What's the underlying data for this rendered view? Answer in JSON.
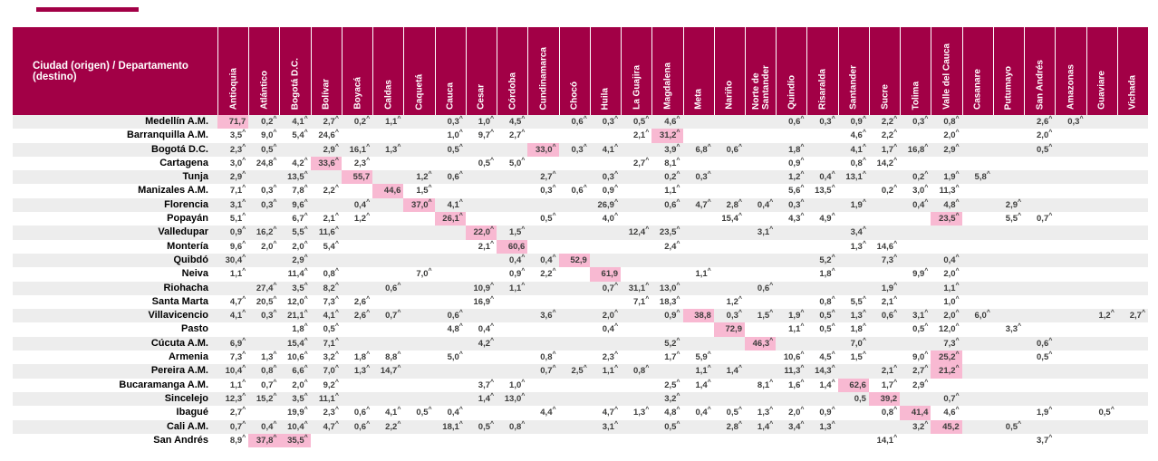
{
  "colors": {
    "header_bg": "#a20046",
    "highlight": "#f8b9d2",
    "row_alt": "#ededed",
    "text": "#3c3c3b"
  },
  "chart_data": {
    "type": "table",
    "corner_label": "Ciudad (origen) / Departamento (destino)",
    "value_note_symbol": "^",
    "columns": [
      "Antioquia",
      "Atlántico",
      "Bogotá D.C.",
      "Bolívar",
      "Boyacá",
      "Caldas",
      "Caquetá",
      "Cauca",
      "Cesar",
      "Córdoba",
      "Cundinamarca",
      "Chocó",
      "Huila",
      "La Guajira",
      "Magdalena",
      "Meta",
      "Nariño",
      "Norte de Santander",
      "Quindío",
      "Risaralda",
      "Santander",
      "Sucre",
      "Tolima",
      "Valle del Cauca",
      "Casanare",
      "Putumayo",
      "San Andrés",
      "Amazonas",
      "Guaviare",
      "Vichada"
    ],
    "rows": [
      {
        "label": "Medellín A.M.",
        "hl": [
          0
        ],
        "cells": [
          "71,7",
          "0,2^",
          "4,1^",
          "2,7^",
          "0,2^",
          "1,1^",
          "",
          "0,3^",
          "1,0^",
          "4,5^",
          "",
          "0,6^",
          "0,3^",
          "0,5^",
          "4,6^",
          "",
          "",
          "",
          "0,6^",
          "0,3^",
          "0,9^",
          "2,2^",
          "0,3^",
          "0,8^",
          "",
          "",
          "2,6^",
          "0,3^",
          "",
          ""
        ]
      },
      {
        "label": "Barranquilla A.M.",
        "hl": [
          14
        ],
        "cells": [
          "3,5^",
          "9,0^",
          "5,4^",
          "24,6^",
          "",
          "",
          "",
          "1,0^",
          "9,7^",
          "2,7^",
          "",
          "",
          "",
          "2,1^",
          "31,2^",
          "",
          "",
          "",
          "",
          "",
          "4,6^",
          "2,2^",
          "",
          "2,0^",
          "",
          "",
          "2,0^",
          "",
          "",
          ""
        ]
      },
      {
        "label": "Bogotá D.C.",
        "hl": [
          10
        ],
        "cells": [
          "2,3^",
          "0,5^",
          "",
          "2,9^",
          "16,1^",
          "1,3^",
          "",
          "0,5^",
          "",
          "",
          "33,0^",
          "0,3^",
          "4,1^",
          "",
          "3,9^",
          "6,8^",
          "0,6^",
          "",
          "1,8^",
          "",
          "4,1^",
          "1,7^",
          "16,8^",
          "2,9^",
          "",
          "",
          "0,5^",
          "",
          "",
          ""
        ]
      },
      {
        "label": "Cartagena",
        "hl": [
          3
        ],
        "cells": [
          "3,0^",
          "24,8^",
          "4,2^",
          "33,6^",
          "2,3^",
          "",
          "",
          "",
          "0,5^",
          "5,0^",
          "",
          "",
          "",
          "2,7^",
          "8,1^",
          "",
          "",
          "",
          "0,9^",
          "",
          "0,8^",
          "14,2^",
          "",
          "",
          "",
          "",
          "",
          "",
          "",
          ""
        ]
      },
      {
        "label": "Tunja",
        "hl": [
          4
        ],
        "cells": [
          "2,9^",
          "",
          "13,5^",
          "",
          "55,7",
          "",
          "1,2^",
          "0,6^",
          "",
          "",
          "2,7^",
          "",
          "0,3^",
          "",
          "0,2^",
          "0,3^",
          "",
          "",
          "1,2^",
          "0,4^",
          "13,1^",
          "",
          "0,2^",
          "1,9^",
          "5,8^",
          "",
          "",
          "",
          "",
          ""
        ]
      },
      {
        "label": "Manizales A.M.",
        "hl": [
          5
        ],
        "cells": [
          "7,1^",
          "0,3^",
          "7,8^",
          "2,2^",
          "",
          "44,6",
          "1,5^",
          "",
          "",
          "",
          "0,3^",
          "0,6^",
          "0,9^",
          "",
          "1,1^",
          "",
          "",
          "",
          "5,6^",
          "13,5^",
          "",
          "0,2^",
          "3,0^",
          "11,3^",
          "",
          "",
          "",
          "",
          "",
          ""
        ]
      },
      {
        "label": "Florencia",
        "hl": [
          6
        ],
        "cells": [
          "3,1^",
          "0,3^",
          "9,6^",
          "",
          "0,4^",
          "",
          "37,0^",
          "4,1^",
          "",
          "",
          "",
          "",
          "26,9^",
          "",
          "0,6^",
          "4,7^",
          "2,8^",
          "0,4^",
          "0,3^",
          "",
          "1,9^",
          "",
          "0,4^",
          "4,8^",
          "",
          "2,9^",
          "",
          "",
          "",
          ""
        ]
      },
      {
        "label": "Popayán",
        "hl": [
          7,
          23
        ],
        "cells": [
          "5,1^",
          "",
          "6,7^",
          "2,1^",
          "1,2^",
          "",
          "",
          "26,1^",
          "",
          "",
          "0,5^",
          "",
          "4,0^",
          "",
          "",
          "",
          "15,4^",
          "",
          "4,3^",
          "4,9^",
          "",
          "",
          "",
          "23,5^",
          "",
          "5,5^",
          "0,7^",
          "",
          "",
          ""
        ]
      },
      {
        "label": "Valledupar",
        "hl": [
          8
        ],
        "cells": [
          "0,9^",
          "16,2^",
          "5,5^",
          "11,6^",
          "",
          "",
          "",
          "",
          "22,0^",
          "1,5^",
          "",
          "",
          "",
          "12,4^",
          "23,5^",
          "",
          "",
          "3,1^",
          "",
          "",
          "3,4^",
          "",
          "",
          "",
          "",
          "",
          "",
          "",
          "",
          ""
        ]
      },
      {
        "label": "Montería",
        "hl": [
          9
        ],
        "cells": [
          "9,6^",
          "2,0^",
          "2,0^",
          "5,4^",
          "",
          "",
          "",
          "",
          "2,1^",
          "60,6",
          "",
          "",
          "",
          "",
          "2,4^",
          "",
          "",
          "",
          "",
          "",
          "1,3^",
          "14,6^",
          "",
          "",
          "",
          "",
          "",
          "",
          "",
          ""
        ]
      },
      {
        "label": "Quibdó",
        "hl": [
          11
        ],
        "cells": [
          "30,4^",
          "",
          "2,9^",
          "",
          "",
          "",
          "",
          "",
          "",
          "0,4^",
          "0,4^",
          "52,9",
          "",
          "",
          "",
          "",
          "",
          "",
          "",
          "5,2^",
          "",
          "7,3^",
          "",
          "0,4^",
          "",
          "",
          "",
          "",
          "",
          ""
        ]
      },
      {
        "label": "Neiva",
        "hl": [
          12
        ],
        "cells": [
          "1,1^",
          "",
          "11,4^",
          "0,8^",
          "",
          "",
          "7,0^",
          "",
          "",
          "0,9^",
          "2,2^",
          "",
          "61,9",
          "",
          "",
          "1,1^",
          "",
          "",
          "",
          "1,8^",
          "",
          "",
          "9,9^",
          "2,0^",
          "",
          "",
          "",
          "",
          "",
          ""
        ]
      },
      {
        "label": "Riohacha",
        "hl": [],
        "cells": [
          "",
          "27,4^",
          "3,5^",
          "8,2^",
          "",
          "0,6^",
          "",
          "",
          "10,9^",
          "1,1^",
          "",
          "",
          "0,7^",
          "31,1^",
          "13,0^",
          "",
          "",
          "0,6^",
          "",
          "",
          "",
          "1,9^",
          "",
          "1,1^",
          "",
          "",
          "",
          "",
          "",
          ""
        ]
      },
      {
        "label": "Santa Marta",
        "hl": [],
        "cells": [
          "4,7^",
          "20,5^",
          "12,0^",
          "7,3^",
          "2,6^",
          "",
          "",
          "",
          "16,9^",
          "",
          "",
          "",
          "",
          "7,1^",
          "18,3^",
          "",
          "1,2^",
          "",
          "",
          "0,8^",
          "5,5^",
          "2,1^",
          "",
          "1,0^",
          "",
          "",
          "",
          "",
          "",
          ""
        ]
      },
      {
        "label": "Villavicencio",
        "hl": [
          15
        ],
        "cells": [
          "4,1^",
          "0,3^",
          "21,1^",
          "4,1^",
          "2,6^",
          "0,7^",
          "",
          "0,6^",
          "",
          "",
          "3,6^",
          "",
          "2,0^",
          "",
          "0,9^",
          "38,8",
          "0,3^",
          "1,5^",
          "1,9^",
          "0,5^",
          "1,3^",
          "0,6^",
          "3,1^",
          "2,0^",
          "6,0^",
          "",
          "",
          "",
          "1,2^",
          "2,7^"
        ]
      },
      {
        "label": "Pasto",
        "hl": [
          16
        ],
        "cells": [
          "",
          "",
          "1,8^",
          "0,5^",
          "",
          "",
          "",
          "4,8^",
          "0,4^",
          "",
          "",
          "",
          "0,4^",
          "",
          "",
          "",
          "72,9",
          "",
          "1,1^",
          "0,5^",
          "1,8^",
          "",
          "0,5^",
          "12,0^",
          "",
          "3,3^",
          "",
          "",
          "",
          ""
        ]
      },
      {
        "label": "Cúcuta A.M.",
        "hl": [
          17
        ],
        "cells": [
          "6,9^",
          "",
          "15,4^",
          "7,1^",
          "",
          "",
          "",
          "",
          "4,2^",
          "",
          "",
          "",
          "",
          "",
          "5,2^",
          "",
          "",
          "46,3^",
          "",
          "",
          "7,0^",
          "",
          "",
          "7,3^",
          "",
          "",
          "0,6^",
          "",
          "",
          ""
        ]
      },
      {
        "label": "Armenia",
        "hl": [
          23
        ],
        "cells": [
          "7,3^",
          "1,3^",
          "10,6^",
          "3,2^",
          "1,8^",
          "8,8^",
          "",
          "5,0^",
          "",
          "",
          "0,8^",
          "",
          "2,3^",
          "",
          "1,7^",
          "5,9^",
          "",
          "",
          "10,6^",
          "4,5^",
          "1,5^",
          "",
          "9,0^",
          "25,2^",
          "",
          "",
          "0,5^",
          "",
          "",
          ""
        ]
      },
      {
        "label": "Pereira A.M.",
        "hl": [
          23
        ],
        "cells": [
          "10,4^",
          "0,8^",
          "6,6^",
          "7,0^",
          "1,3^",
          "14,7^",
          "",
          "",
          "",
          "",
          "0,7^",
          "2,5^",
          "1,1^",
          "0,8^",
          "",
          "1,1^",
          "1,4^",
          "",
          "11,3^",
          "14,3^",
          "",
          "2,1^",
          "2,7^",
          "21,2^",
          "",
          "",
          "",
          "",
          "",
          ""
        ]
      },
      {
        "label": "Bucaramanga A.M.",
        "hl": [
          20
        ],
        "cells": [
          "1,1^",
          "0,7^",
          "2,0^",
          "9,2^",
          "",
          "",
          "",
          "",
          "3,7^",
          "1,0^",
          "",
          "",
          "",
          "",
          "2,5^",
          "1,4^",
          "",
          "8,1^",
          "1,6^",
          "1,4^",
          "62,6",
          "1,7^",
          "2,9^",
          "",
          "",
          "",
          "",
          "",
          "",
          ""
        ]
      },
      {
        "label": "Sincelejo",
        "hl": [
          21
        ],
        "cells": [
          "12,3^",
          "15,2^",
          "3,5^",
          "11,1^",
          "",
          "",
          "",
          "",
          "1,4^",
          "13,0^",
          "",
          "",
          "",
          "",
          "3,2^",
          "",
          "",
          "",
          "",
          "",
          "0,5",
          "39,2",
          "",
          "0,7^",
          "",
          "",
          "",
          "",
          "",
          ""
        ]
      },
      {
        "label": "Ibagué",
        "hl": [
          22
        ],
        "cells": [
          "2,7^",
          "",
          "19,9^",
          "2,3^",
          "0,6^",
          "4,1^",
          "0,5^",
          "0,4^",
          "",
          "",
          "4,4^",
          "",
          "4,7^",
          "1,3^",
          "4,8^",
          "0,4^",
          "0,5^",
          "1,3^",
          "2,0^",
          "0,9^",
          "",
          "0,8^",
          "41,4",
          "4,6^",
          "",
          "",
          "1,9^",
          "",
          "0,5^",
          ""
        ]
      },
      {
        "label": "Cali A.M.",
        "hl": [
          23
        ],
        "cells": [
          "0,7^",
          "0,4^",
          "10,4^",
          "4,7^",
          "0,6^",
          "2,2^",
          "",
          "18,1^",
          "0,5^",
          "0,8^",
          "",
          "",
          "3,1^",
          "",
          "0,5^",
          "",
          "2,8^",
          "1,4^",
          "3,4^",
          "1,3^",
          "",
          "",
          "3,2^",
          "45,2",
          "",
          "0,5^",
          "",
          "",
          "",
          ""
        ]
      },
      {
        "label": "San Andrés",
        "hl": [
          1,
          2
        ],
        "cells": [
          "8,9^",
          "37,8^",
          "35,5^",
          "",
          "",
          "",
          "",
          "",
          "",
          "",
          "",
          "",
          "",
          "",
          "",
          "",
          "",
          "",
          "",
          "",
          "",
          "14,1^",
          "",
          "",
          "",
          "",
          "3,7^",
          "",
          "",
          ""
        ]
      }
    ]
  }
}
